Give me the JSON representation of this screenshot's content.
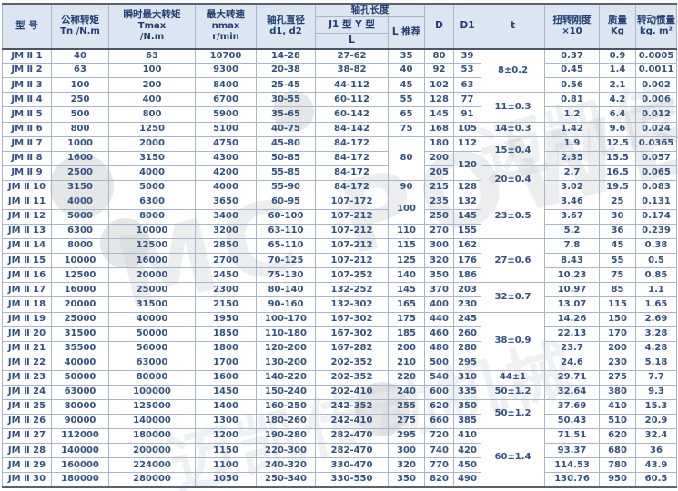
{
  "table": {
    "headers": {
      "model": "型 号",
      "tn_line1": "公称转矩",
      "tn_line2": "Tn /N.m",
      "tmax_line1": "瞬时最大转矩",
      "tmax_line2": "Tmax",
      "tmax_line3": "/N.m",
      "nmax_line1": "最大转速",
      "nmax_line2": "nmax",
      "nmax_line3": "r/min",
      "bore_line1": "轴孔直径",
      "bore_line2": "d1, d2",
      "hole_length": "轴孔长度",
      "j1y": "J1 型 Y 型",
      "L": "L",
      "l_rec": "L 推荐",
      "D": "D",
      "D1": "D1",
      "t": "t",
      "stiff_line1": "扭转刚度",
      "stiff_line2": "×10",
      "mass_line1": "质量",
      "mass_line2": "Kg",
      "inertia_line1": "转动惯量",
      "inertia_line2": "kg. m²"
    },
    "rows": [
      [
        "JM Ⅱ 1",
        "40",
        "63",
        "10700",
        "14-28",
        "27-62",
        "35",
        "80",
        "39",
        [
          "8±0.2",
          3
        ],
        "0.37",
        "0.9",
        "0.0005"
      ],
      [
        "JM Ⅱ 2",
        "63",
        "100",
        "9300",
        "20-38",
        "38-82",
        "40",
        "92",
        "53",
        "0.45",
        "1.4",
        "0.0011"
      ],
      [
        "JM Ⅱ 3",
        "100",
        "200",
        "8400",
        "25-45",
        "44-112",
        "45",
        "102",
        "63",
        "0.56",
        "2.1",
        "0.002"
      ],
      [
        "JM Ⅱ 4",
        "250",
        "400",
        "6700",
        "30-55",
        "60-112",
        "55",
        "128",
        "77",
        [
          "11±0.3",
          2
        ],
        "0.81",
        "4.2",
        "0.006"
      ],
      [
        "JM Ⅱ 5",
        "500",
        "800",
        "5900",
        "35-65",
        "60-142",
        "65",
        "145",
        "91",
        "1.2",
        "6.4",
        "0.012"
      ],
      [
        "JM Ⅱ 6",
        "800",
        "1250",
        "5100",
        "40-75",
        "84-142",
        "75",
        "168",
        "105",
        "14±0.3",
        "1.42",
        "9.6",
        "0.024"
      ],
      [
        "JM Ⅱ 7",
        "1000",
        "2000",
        "4750",
        "45-80",
        "84-172",
        [
          "80",
          3
        ],
        "180",
        "112",
        [
          "15±0.4",
          2
        ],
        "1.9",
        "12.5",
        "0.0365"
      ],
      [
        "JM Ⅱ 8",
        "1600",
        "3150",
        "4300",
        "50-85",
        "84-172",
        "200",
        [
          "120",
          2
        ],
        "2.35",
        "15.5",
        "0.057"
      ],
      [
        "JM Ⅱ 9",
        "2500",
        "4000",
        "4200",
        "55-85",
        "84-172",
        "205",
        [
          "20±0.4",
          2
        ],
        "2.7",
        "16.5",
        "0.065"
      ],
      [
        "JM Ⅱ 10",
        "3150",
        "5000",
        "4000",
        "55-90",
        "84-172",
        "90",
        "215",
        "128",
        "3.02",
        "19.5",
        "0.083"
      ],
      [
        "JM Ⅱ 11",
        "4000",
        "6300",
        "3650",
        "60-95",
        "107-172",
        [
          "100",
          2
        ],
        "235",
        "132",
        [
          "23±0.5",
          3
        ],
        "3.46",
        "25",
        "0.131"
      ],
      [
        "JM Ⅱ 12",
        "5000",
        "8000",
        "3400",
        "60-100",
        "107-212",
        "250",
        "145",
        "3.67",
        "30",
        "0.174"
      ],
      [
        "JM Ⅱ 13",
        "6300",
        "10000",
        "3200",
        "63-110",
        "107-212",
        "110",
        "270",
        "155",
        "5.2",
        "36",
        "0.239"
      ],
      [
        "JM Ⅱ 14",
        "8000",
        "12500",
        "2850",
        "65-110",
        "107-212",
        "115",
        "300",
        "162",
        [
          "27±0.6",
          3
        ],
        "7.8",
        "45",
        "0.38"
      ],
      [
        "JM Ⅱ 15",
        "10000",
        "16000",
        "2700",
        "70-125",
        "107-212",
        "125",
        "320",
        "176",
        "8.43",
        "55",
        "0.5"
      ],
      [
        "JM Ⅱ 16",
        "12500",
        "20000",
        "2450",
        "75-130",
        "107-252",
        "140",
        "350",
        "186",
        "10.23",
        "75",
        "0.85"
      ],
      [
        "JM Ⅱ 17",
        "16000",
        "25000",
        "2300",
        "80-140",
        "132-252",
        "145",
        "370",
        "203",
        [
          "32±0.7",
          2
        ],
        "10.97",
        "85",
        "1.1"
      ],
      [
        "JM Ⅱ 18",
        "20000",
        "31500",
        "2150",
        "90-160",
        "132-302",
        "165",
        "400",
        "230",
        "13.07",
        "115",
        "1.65"
      ],
      [
        "JM Ⅱ 19",
        "25000",
        "40000",
        "1950",
        "100-170",
        "167-302",
        "175",
        "440",
        "245",
        [
          "38±0.9",
          4
        ],
        "14.26",
        "150",
        "2.69"
      ],
      [
        "JM Ⅱ 20",
        "31500",
        "50000",
        "1850",
        "110-180",
        "167-302",
        "185",
        "460",
        "260",
        "22.13",
        "170",
        "3.28"
      ],
      [
        "JM Ⅱ 21",
        "35500",
        "56000",
        "1800",
        "120-200",
        "167-282",
        "200",
        "480",
        "280",
        "23.7",
        "200",
        "4.28"
      ],
      [
        "JM Ⅱ 22",
        "40000",
        "63000",
        "1700",
        "130-200",
        "202-352",
        "210",
        "500",
        "295",
        "24.6",
        "230",
        "5.18"
      ],
      [
        "JM Ⅱ 23",
        "50000",
        "80000",
        "1600",
        "140-220",
        "202-352",
        "220",
        "540",
        "310",
        "44±1",
        "29.71",
        "275",
        "7.7"
      ],
      [
        "JM Ⅱ 24",
        "63000",
        "100000",
        "1450",
        "150-240",
        "202-410",
        "240",
        "600",
        "335",
        "50±1.2",
        "32.64",
        "380",
        "9.3"
      ],
      [
        "JM Ⅱ 25",
        "80000",
        "125000",
        "1400",
        "160-250",
        "242-352",
        "255",
        "620",
        "350",
        [
          "50±1.2",
          2
        ],
        "37.69",
        "410",
        "15.3"
      ],
      [
        "JM Ⅱ 26",
        "90000",
        "140000",
        "1300",
        "180-260",
        "242-410",
        "275",
        "660",
        "385",
        "50.43",
        "510",
        "20.9"
      ],
      [
        "JM Ⅱ 27",
        "112000",
        "180000",
        "1200",
        "190-280",
        "282-470",
        "295",
        "720",
        "410",
        [
          "60±1.4",
          4
        ],
        "71.51",
        "620",
        "32.4"
      ],
      [
        "JM Ⅱ 28",
        "140000",
        "200000",
        "1150",
        "220-300",
        "282-470",
        "300",
        "740",
        "420",
        "93.37",
        "680",
        "36"
      ],
      [
        "JM Ⅱ 29",
        "160000",
        "224000",
        "1100",
        "240-320",
        "330-470",
        "320",
        "770",
        "450",
        "114.53",
        "780",
        "43.9"
      ],
      [
        "JM Ⅱ 30",
        "180000",
        "280000",
        "1050",
        "250-340",
        "330-550",
        "350",
        "820",
        "490",
        "130.76",
        "950",
        "60.5"
      ]
    ]
  },
  "watermark": {
    "text_1": "MC POWER",
    "text_2": "迈凯传动机械"
  },
  "colors": {
    "header_bg": "#dce6f2",
    "header_text": "#1f3d6e",
    "body_text": "#33517e",
    "border": "#a9b6c9",
    "frame": "#58616f",
    "watermark": "#c8ccd2"
  }
}
